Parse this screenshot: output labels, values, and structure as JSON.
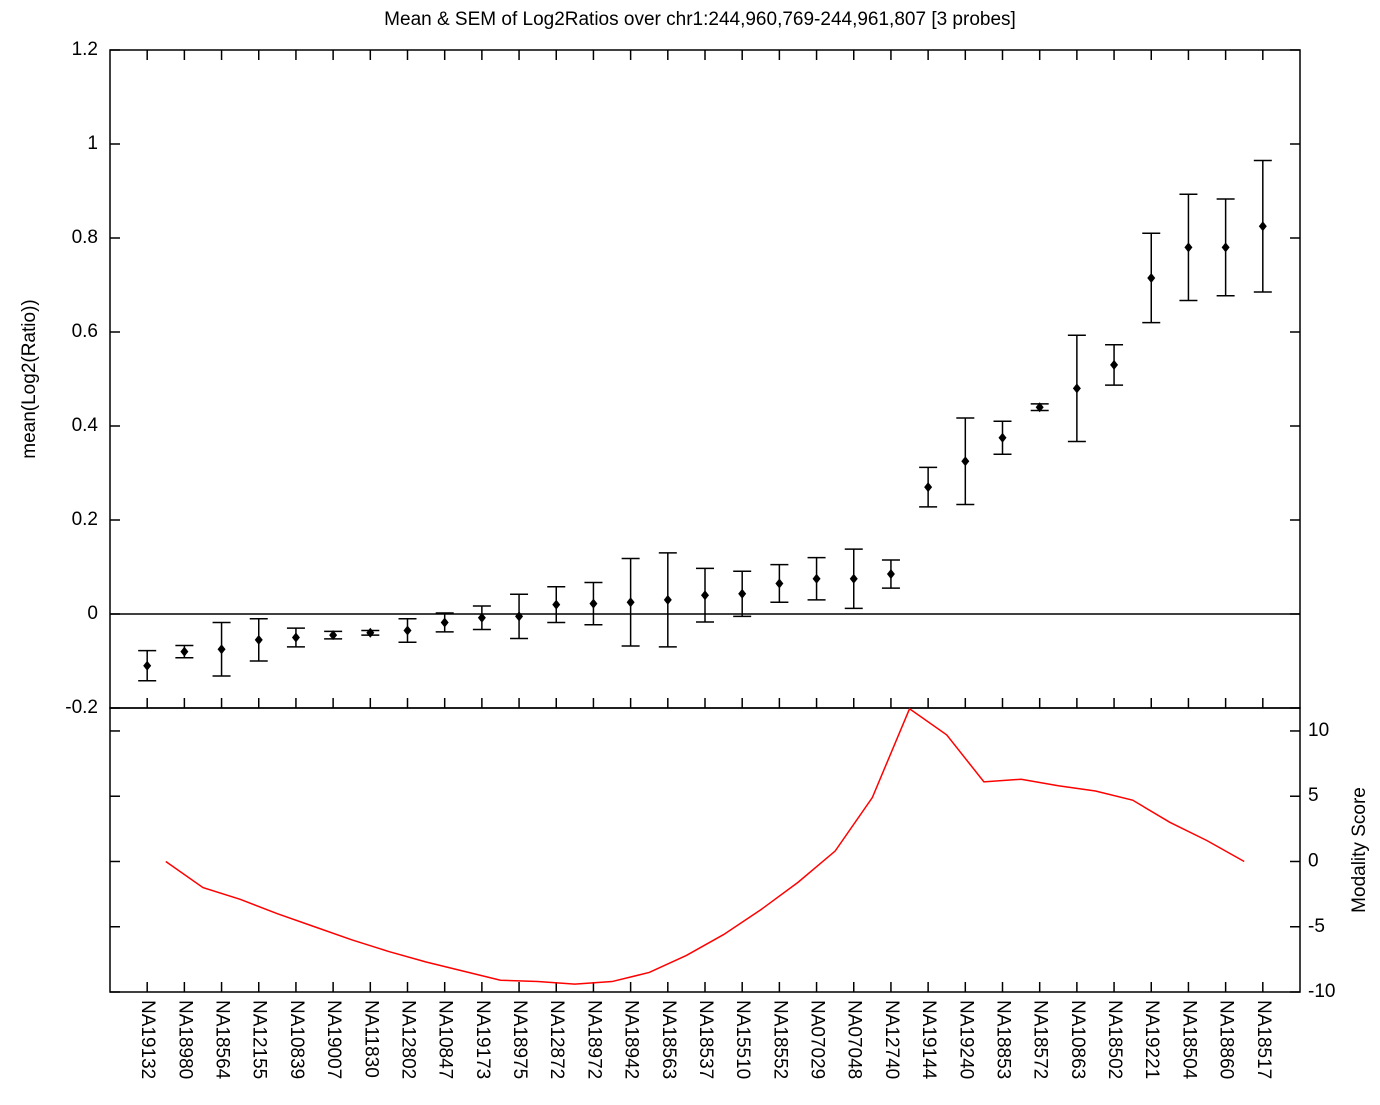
{
  "chart_data": [
    {
      "type": "errorbar",
      "title": "Mean & SEM of Log2Ratios over chr1:244,960,769-244,961,807  [3 probes]",
      "ylabel": "mean(Log2(Ratio))",
      "categories": [
        "NA19132",
        "NA18980",
        "NA18564",
        "NA12155",
        "NA10839",
        "NA19007",
        "NA11830",
        "NA12802",
        "NA10847",
        "NA19173",
        "NA18975",
        "NA12872",
        "NA18972",
        "NA18942",
        "NA18563",
        "NA18537",
        "NA15510",
        "NA18552",
        "NA07029",
        "NA07048",
        "NA12740",
        "NA19144",
        "NA19240",
        "NA18853",
        "NA18572",
        "NA10863",
        "NA18502",
        "NA19221",
        "NA18504",
        "NA18860",
        "NA18517"
      ],
      "values": [
        -0.11,
        -0.08,
        -0.075,
        -0.055,
        -0.05,
        -0.045,
        -0.04,
        -0.035,
        -0.018,
        -0.008,
        -0.005,
        0.02,
        0.022,
        0.025,
        0.03,
        0.04,
        0.043,
        0.065,
        0.075,
        0.075,
        0.085,
        0.27,
        0.325,
        0.375,
        0.44,
        0.48,
        0.53,
        0.715,
        0.78,
        0.78,
        0.825
      ],
      "errors": [
        0.032,
        0.013,
        0.057,
        0.045,
        0.02,
        0.008,
        0.005,
        0.025,
        0.02,
        0.025,
        0.047,
        0.038,
        0.045,
        0.093,
        0.1,
        0.057,
        0.048,
        0.04,
        0.045,
        0.063,
        0.03,
        0.042,
        0.092,
        0.035,
        0.007,
        0.113,
        0.043,
        0.095,
        0.113,
        0.103,
        0.14
      ],
      "color": "#000000",
      "xlim": [
        0,
        32
      ],
      "ylim": [
        -0.2,
        1.2
      ],
      "yticks": [
        -0.2,
        0,
        0.2,
        0.4,
        0.6,
        0.8,
        1,
        1.2
      ]
    },
    {
      "type": "line",
      "ylabel": "Modality Score",
      "x": [
        1.5,
        2.5,
        3.5,
        4.5,
        5.5,
        6.5,
        7.5,
        8.5,
        9.5,
        10.5,
        11.5,
        12.5,
        13.5,
        14.5,
        15.5,
        16.5,
        17.5,
        18.5,
        19.5,
        20.5,
        21.5,
        22.5,
        23.5,
        24.5,
        25.5,
        26.5,
        27.5,
        28.5,
        29.5,
        30.5
      ],
      "xlim": [
        0,
        32
      ],
      "series": [
        {
          "color": "#ff0000",
          "axis": "y2",
          "values": [
            0,
            -2,
            -2.9,
            -4,
            -5,
            -6,
            -6.9,
            -7.7,
            -8.4,
            -9.1,
            -9.2,
            -9.4,
            -9.2,
            -8.5,
            -7.2,
            -5.6,
            -3.7,
            -1.6,
            0.8,
            4.9,
            11.7,
            9.7,
            6.1,
            6.3,
            5.8,
            5.4,
            4.7,
            3,
            1.6,
            0
          ]
        }
      ],
      "y2lim": [
        -10,
        11.76
      ],
      "y2ticks": [
        -10,
        -5,
        0,
        5,
        10
      ]
    }
  ]
}
